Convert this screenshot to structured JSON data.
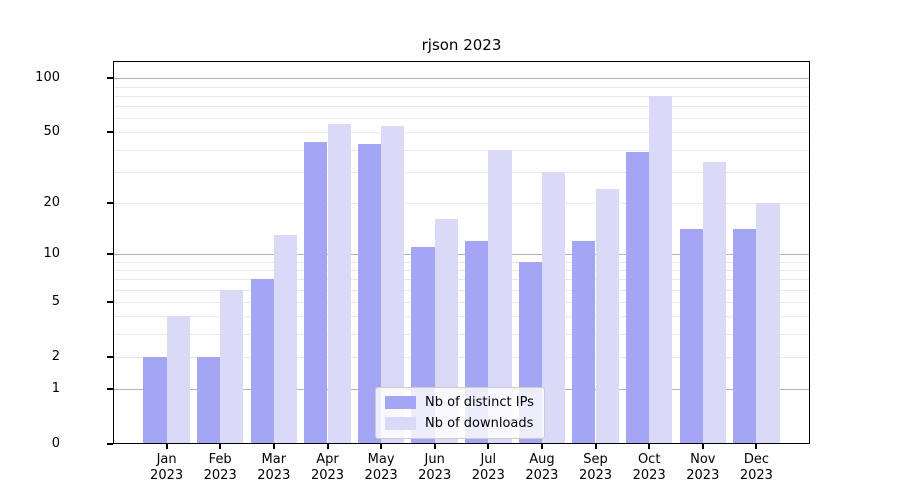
{
  "chart_data": {
    "type": "bar",
    "title": "rjson 2023",
    "categories": [
      "Jan 2023",
      "Feb 2023",
      "Mar 2023",
      "Apr 2023",
      "May 2023",
      "Jun 2023",
      "Jul 2023",
      "Aug 2023",
      "Sep 2023",
      "Oct 2023",
      "Nov 2023",
      "Dec 2023"
    ],
    "series": [
      {
        "name": "Nb of distinct IPs",
        "color": "#a5a5f5",
        "values": [
          2,
          2,
          7,
          44,
          43,
          11,
          12,
          9,
          12,
          39,
          14,
          14
        ]
      },
      {
        "name": "Nb of downloads",
        "color": "#dadaf8",
        "values": [
          4,
          6,
          13,
          56,
          54,
          16,
          40,
          30,
          24,
          80,
          34,
          20
        ]
      }
    ],
    "yticks": [
      0,
      1,
      2,
      5,
      10,
      20,
      50,
      100
    ],
    "ylim": [
      0,
      125
    ],
    "yscale": "log1p",
    "grid": true,
    "legend_position": "bottom-center",
    "colors": {
      "major_gridline": "#b3b3b3",
      "minor_gridline": "#e9e9e9",
      "axis": "#000000"
    }
  }
}
